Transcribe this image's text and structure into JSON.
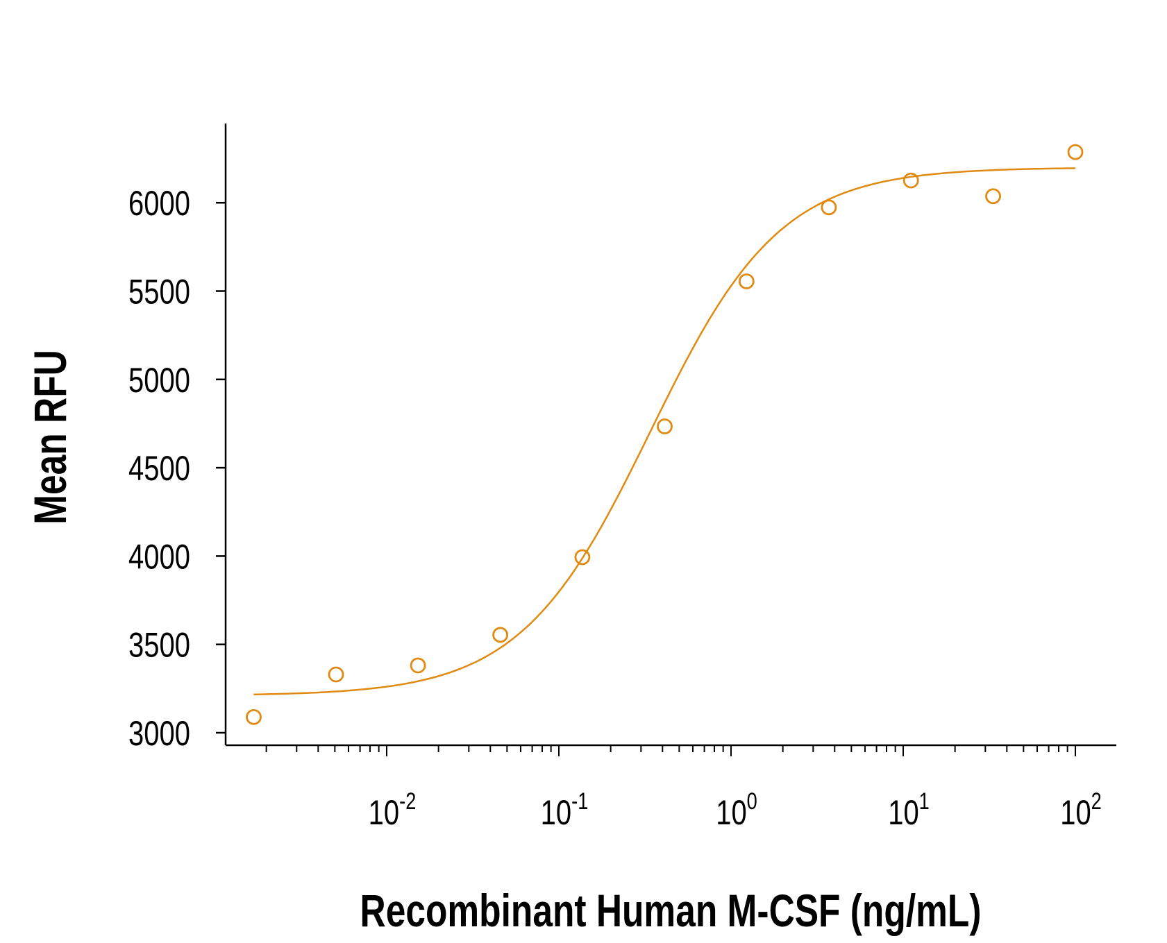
{
  "chart_data": {
    "type": "scatter",
    "title": "",
    "xlabel": "Recombinant Human M-CSF (ng/mL)",
    "ylabel": "Mean RFU",
    "xscale": "log",
    "xlim": [
      0.0012,
      180
    ],
    "ylim": [
      2950,
      6420
    ],
    "x_ticks": [
      0.01,
      0.1,
      1,
      10,
      100
    ],
    "x_tick_labels": [
      {
        "base": "10",
        "exp": "-2"
      },
      {
        "base": "10",
        "exp": "-1"
      },
      {
        "base": "10",
        "exp": "0"
      },
      {
        "base": "10",
        "exp": "1"
      },
      {
        "base": "10",
        "exp": "2"
      }
    ],
    "y_ticks": [
      3000,
      3500,
      4000,
      4500,
      5000,
      5500,
      6000
    ],
    "y_tick_labels": [
      "3000",
      "3500",
      "4000",
      "4500",
      "5000",
      "5500",
      "6000"
    ],
    "grid": false,
    "color": "#e08a12",
    "series": [
      {
        "name": "Mean RFU",
        "x": [
          0.00169,
          0.00508,
          0.0152,
          0.0457,
          0.137,
          0.412,
          1.23,
          3.7,
          11.1,
          33.3,
          100
        ],
        "y": [
          3089,
          3330,
          3381,
          3554,
          3994,
          4734,
          5555,
          5974,
          6126,
          6037,
          6287
        ]
      }
    ],
    "fit": {
      "model": "4PL",
      "bottom": 3210,
      "top": 6200,
      "ec50": 0.34,
      "hill": 1.15,
      "x_range": [
        0.00169,
        100
      ]
    }
  }
}
